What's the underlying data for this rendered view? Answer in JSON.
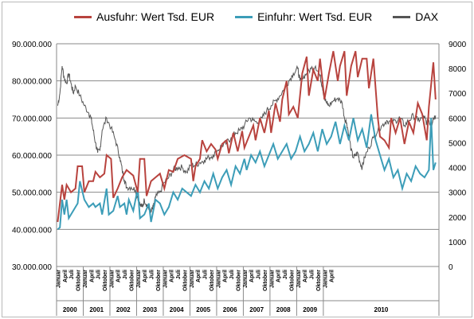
{
  "chart_data": {
    "type": "line",
    "legend_position": "top",
    "grid": true,
    "series": [
      {
        "name": "Ausfuhr: Wert Tsd. EUR",
        "axis": "left",
        "color": "#b8433e",
        "anchors": [
          [
            0,
            42000000
          ],
          [
            2,
            52000000
          ],
          [
            3,
            48000000
          ],
          [
            4,
            52000000
          ],
          [
            6,
            50000000
          ],
          [
            8,
            51000000
          ],
          [
            9,
            57000000
          ],
          [
            11,
            57000000
          ],
          [
            12,
            50000000
          ],
          [
            14,
            53000000
          ],
          [
            16,
            53000000
          ],
          [
            17,
            55500000
          ],
          [
            19,
            54000000
          ],
          [
            21,
            55000000
          ],
          [
            22,
            60000000
          ],
          [
            24,
            59000000
          ],
          [
            25,
            48500000
          ],
          [
            27,
            51000000
          ],
          [
            29,
            54000000
          ],
          [
            31,
            56000000
          ],
          [
            34,
            54500000
          ],
          [
            36,
            50000000
          ],
          [
            37,
            59000000
          ],
          [
            39,
            59000000
          ],
          [
            40,
            49000000
          ],
          [
            42,
            53000000
          ],
          [
            44,
            54000000
          ],
          [
            46,
            55000000
          ],
          [
            48,
            51000000
          ],
          [
            50,
            56000000
          ],
          [
            52,
            55500000
          ],
          [
            54,
            59000000
          ],
          [
            57,
            60000000
          ],
          [
            60,
            59000000
          ],
          [
            61,
            53000000
          ],
          [
            62,
            57000000
          ],
          [
            64,
            59000000
          ],
          [
            65,
            64000000
          ],
          [
            67,
            61000000
          ],
          [
            69,
            63000000
          ],
          [
            71,
            61500000
          ],
          [
            72,
            59000000
          ],
          [
            74,
            63000000
          ],
          [
            76,
            64000000
          ],
          [
            77,
            60500000
          ],
          [
            79,
            66000000
          ],
          [
            81,
            61000000
          ],
          [
            83,
            66500000
          ],
          [
            84,
            62000000
          ],
          [
            86,
            65000000
          ],
          [
            88,
            68000000
          ],
          [
            89,
            64000000
          ],
          [
            91,
            70000000
          ],
          [
            93,
            66000000
          ],
          [
            95,
            72000000
          ],
          [
            96,
            66000000
          ],
          [
            98,
            74000000
          ],
          [
            100,
            69000000
          ],
          [
            101,
            75000000
          ],
          [
            103,
            80000000
          ],
          [
            104,
            71000000
          ],
          [
            106,
            73000000
          ],
          [
            108,
            70000000
          ],
          [
            110,
            82000000
          ],
          [
            112,
            86500000
          ],
          [
            113,
            76000000
          ],
          [
            115,
            83000000
          ],
          [
            117,
            80000000
          ],
          [
            118,
            86000000
          ],
          [
            120,
            75000000
          ],
          [
            122,
            82000000
          ],
          [
            124,
            88000000
          ],
          [
            126,
            80000000
          ],
          [
            127,
            84000000
          ],
          [
            129,
            88000000
          ],
          [
            130,
            76000000
          ],
          [
            132,
            84000000
          ],
          [
            134,
            88000000
          ],
          [
            135,
            81000000
          ],
          [
            137,
            86000000
          ],
          [
            139,
            86000000
          ],
          [
            140,
            78000000
          ],
          [
            142,
            86000000
          ],
          [
            144,
            70000000
          ],
          [
            145,
            65000000
          ],
          [
            147,
            64000000
          ],
          [
            149,
            62000000
          ],
          [
            150,
            70000000
          ],
          [
            152,
            66000000
          ],
          [
            154,
            70000000
          ],
          [
            156,
            63000000
          ],
          [
            158,
            69000000
          ],
          [
            160,
            66000000
          ],
          [
            162,
            74000000
          ],
          [
            164,
            71000000
          ],
          [
            166,
            64000000
          ],
          [
            167,
            73000000
          ],
          [
            169,
            85000000
          ],
          [
            170,
            75000000
          ]
        ]
      },
      {
        "name": "Einfuhr: Wert Tsd. EUR",
        "axis": "left",
        "color": "#3c9db8",
        "anchors": [
          [
            0,
            40000000
          ],
          [
            1,
            40500000
          ],
          [
            2,
            48000000
          ],
          [
            3,
            44000000
          ],
          [
            4,
            48000000
          ],
          [
            5,
            43000000
          ],
          [
            7,
            45000000
          ],
          [
            9,
            47000000
          ],
          [
            10,
            53000000
          ],
          [
            12,
            48000000
          ],
          [
            14,
            46000000
          ],
          [
            16,
            47000000
          ],
          [
            17,
            46000000
          ],
          [
            19,
            47000000
          ],
          [
            20,
            44000000
          ],
          [
            22,
            51000000
          ],
          [
            23,
            44000000
          ],
          [
            25,
            45000000
          ],
          [
            27,
            49000000
          ],
          [
            28,
            46000000
          ],
          [
            30,
            47000000
          ],
          [
            31,
            44000000
          ],
          [
            32,
            48000000
          ],
          [
            34,
            45000000
          ],
          [
            36,
            51000000
          ],
          [
            37,
            43000000
          ],
          [
            39,
            44000000
          ],
          [
            41,
            47000000
          ],
          [
            42,
            42000000
          ],
          [
            44,
            48000000
          ],
          [
            46,
            47000000
          ],
          [
            48,
            44000000
          ],
          [
            50,
            46000000
          ],
          [
            52,
            50000000
          ],
          [
            54,
            48000000
          ],
          [
            56,
            51000000
          ],
          [
            58,
            50000000
          ],
          [
            60,
            49000000
          ],
          [
            62,
            52000000
          ],
          [
            64,
            50000000
          ],
          [
            66,
            53000000
          ],
          [
            68,
            51000000
          ],
          [
            70,
            55000000
          ],
          [
            72,
            51000000
          ],
          [
            74,
            54000000
          ],
          [
            76,
            56000000
          ],
          [
            78,
            52000000
          ],
          [
            80,
            57000000
          ],
          [
            82,
            55000000
          ],
          [
            84,
            59000000
          ],
          [
            85,
            56000000
          ],
          [
            87,
            60000000
          ],
          [
            89,
            58000000
          ],
          [
            91,
            61000000
          ],
          [
            93,
            57000000
          ],
          [
            95,
            60000000
          ],
          [
            97,
            63000000
          ],
          [
            99,
            59000000
          ],
          [
            101,
            61000000
          ],
          [
            103,
            63000000
          ],
          [
            105,
            59000000
          ],
          [
            107,
            61000000
          ],
          [
            109,
            65000000
          ],
          [
            111,
            61000000
          ],
          [
            113,
            63000000
          ],
          [
            115,
            66000000
          ],
          [
            117,
            61000000
          ],
          [
            119,
            67000000
          ],
          [
            121,
            63000000
          ],
          [
            123,
            65000000
          ],
          [
            125,
            69000000
          ],
          [
            127,
            63000000
          ],
          [
            129,
            68000000
          ],
          [
            131,
            64000000
          ],
          [
            133,
            70000000
          ],
          [
            135,
            64000000
          ],
          [
            137,
            67000000
          ],
          [
            139,
            62000000
          ],
          [
            141,
            71000000
          ],
          [
            143,
            64000000
          ],
          [
            145,
            60000000
          ],
          [
            147,
            56000000
          ],
          [
            149,
            59000000
          ],
          [
            151,
            54000000
          ],
          [
            153,
            56000000
          ],
          [
            155,
            51000000
          ],
          [
            157,
            55000000
          ],
          [
            159,
            53000000
          ],
          [
            161,
            57000000
          ],
          [
            163,
            55000000
          ],
          [
            165,
            54000000
          ],
          [
            167,
            56000000
          ],
          [
            168,
            70000000
          ],
          [
            169,
            56000000
          ],
          [
            170,
            58000000
          ]
        ]
      },
      {
        "name": "DAX",
        "axis": "right",
        "color": "#555555",
        "anchors": [
          [
            0,
            6500
          ],
          [
            1,
            7000
          ],
          [
            2,
            8100
          ],
          [
            3,
            7600
          ],
          [
            4,
            7400
          ],
          [
            5,
            7800
          ],
          [
            6,
            7400
          ],
          [
            7,
            7000
          ],
          [
            8,
            7300
          ],
          [
            10,
            6900
          ],
          [
            12,
            6500
          ],
          [
            14,
            6200
          ],
          [
            15,
            6000
          ],
          [
            16,
            5500
          ],
          [
            17,
            5000
          ],
          [
            18,
            4600
          ],
          [
            19,
            4700
          ],
          [
            20,
            5500
          ],
          [
            22,
            6000
          ],
          [
            24,
            5600
          ],
          [
            26,
            5100
          ],
          [
            28,
            4400
          ],
          [
            29,
            3900
          ],
          [
            30,
            3500
          ],
          [
            31,
            3200
          ],
          [
            33,
            3200
          ],
          [
            35,
            3100
          ],
          [
            36,
            2800
          ],
          [
            37,
            2500
          ],
          [
            38,
            2400
          ],
          [
            39,
            2700
          ],
          [
            40,
            2500
          ],
          [
            41,
            2300
          ],
          [
            42,
            2200
          ],
          [
            43,
            2400
          ],
          [
            44,
            2800
          ],
          [
            46,
            3000
          ],
          [
            48,
            3400
          ],
          [
            50,
            3600
          ],
          [
            52,
            3900
          ],
          [
            54,
            4000
          ],
          [
            56,
            4000
          ],
          [
            58,
            3800
          ],
          [
            60,
            4100
          ],
          [
            62,
            4100
          ],
          [
            64,
            4200
          ],
          [
            66,
            4300
          ],
          [
            68,
            4400
          ],
          [
            70,
            4500
          ],
          [
            72,
            4700
          ],
          [
            74,
            4900
          ],
          [
            76,
            5000
          ],
          [
            78,
            5200
          ],
          [
            80,
            5400
          ],
          [
            82,
            5500
          ],
          [
            84,
            5700
          ],
          [
            86,
            6000
          ],
          [
            88,
            5900
          ],
          [
            90,
            5800
          ],
          [
            92,
            6000
          ],
          [
            94,
            6300
          ],
          [
            96,
            6500
          ],
          [
            98,
            6700
          ],
          [
            100,
            6900
          ],
          [
            102,
            7200
          ],
          [
            104,
            7500
          ],
          [
            106,
            7800
          ],
          [
            108,
            8000
          ],
          [
            109,
            7500
          ],
          [
            110,
            7600
          ],
          [
            112,
            7800
          ],
          [
            114,
            8000
          ],
          [
            116,
            8100
          ],
          [
            118,
            7700
          ],
          [
            119,
            7300
          ],
          [
            120,
            6800
          ],
          [
            121,
            6600
          ],
          [
            122,
            6500
          ],
          [
            124,
            6700
          ],
          [
            126,
            6800
          ],
          [
            128,
            6600
          ],
          [
            129,
            6000
          ],
          [
            130,
            5800
          ],
          [
            131,
            5300
          ],
          [
            132,
            4700
          ],
          [
            133,
            4400
          ],
          [
            134,
            4500
          ],
          [
            135,
            4600
          ],
          [
            136,
            4200
          ],
          [
            137,
            4000
          ],
          [
            138,
            4400
          ],
          [
            140,
            4800
          ],
          [
            142,
            5200
          ],
          [
            144,
            5500
          ],
          [
            146,
            5700
          ],
          [
            148,
            5900
          ],
          [
            150,
            5800
          ],
          [
            152,
            5900
          ],
          [
            154,
            6000
          ],
          [
            156,
            5700
          ],
          [
            158,
            5900
          ],
          [
            160,
            6100
          ],
          [
            162,
            5900
          ],
          [
            164,
            6000
          ],
          [
            165,
            6000
          ],
          [
            166,
            5800
          ],
          [
            167,
            5900
          ],
          [
            168,
            5700
          ],
          [
            169,
            6000
          ],
          [
            170,
            6100
          ]
        ]
      }
    ],
    "y_left": {
      "min": 30000000,
      "max": 90000000,
      "ticks": [
        "30.000.000",
        "40.000.000",
        "50.000.000",
        "60.000.000",
        "70.000.000",
        "80.000.000",
        "90.000.000"
      ]
    },
    "y_right": {
      "min": 0,
      "max": 9000,
      "ticks": [
        "0",
        "1000",
        "2000",
        "3000",
        "4000",
        "5000",
        "6000",
        "7000",
        "8000",
        "9000"
      ]
    },
    "x_month_labels": [
      "Januar",
      "April",
      "Juli",
      "Oktober"
    ],
    "x_last_year_month_labels": [
      "Januar",
      "April"
    ],
    "years": [
      "2000",
      "2001",
      "2002",
      "2003",
      "2004",
      "2005",
      "2006",
      "2007",
      "2008",
      "2009",
      "2010"
    ],
    "x_months_total": 172
  }
}
